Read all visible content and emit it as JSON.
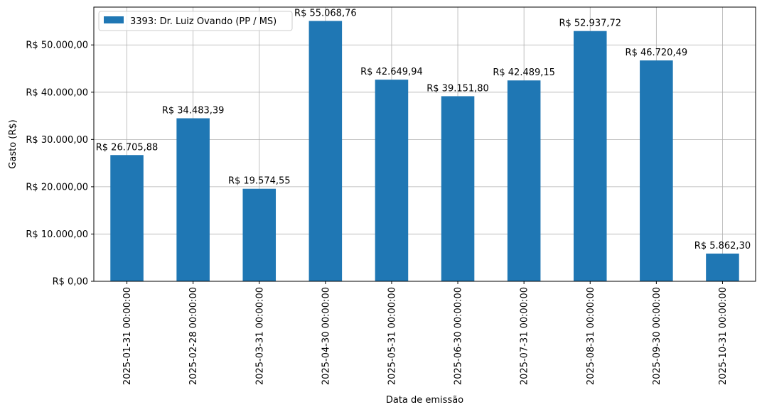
{
  "chart_data": {
    "type": "bar",
    "title": "",
    "xlabel": "Data de emissão",
    "ylabel": "Gasto (R$)",
    "ylim": [
      0,
      58000
    ],
    "yticks": [
      0,
      10000,
      20000,
      30000,
      40000,
      50000
    ],
    "ytick_labels": [
      "R$ 0,00",
      "R$ 10.000,00",
      "R$ 20.000,00",
      "R$ 30.000,00",
      "R$ 40.000,00",
      "R$ 50.000,00"
    ],
    "grid": true,
    "legend_position": "top-left",
    "categories": [
      "2025-01-31 00:00:00",
      "2025-02-28 00:00:00",
      "2025-03-31 00:00:00",
      "2025-04-30 00:00:00",
      "2025-05-31 00:00:00",
      "2025-06-30 00:00:00",
      "2025-07-31 00:00:00",
      "2025-08-31 00:00:00",
      "2025-09-30 00:00:00",
      "2025-10-31 00:00:00"
    ],
    "series": [
      {
        "name": "3393: Dr. Luiz Ovando (PP / MS)",
        "color": "#1f77b4",
        "values": [
          26705.88,
          34483.39,
          19574.55,
          55068.76,
          42649.94,
          39151.8,
          42489.15,
          52937.72,
          46720.49,
          5862.3
        ],
        "value_labels": [
          "R$ 26.705,88",
          "R$ 34.483,39",
          "R$ 19.574,55",
          "R$ 55.068,76",
          "R$ 42.649,94",
          "R$ 39.151,80",
          "R$ 42.489,15",
          "R$ 52.937,72",
          "R$ 46.720,49",
          "R$ 5.862,30"
        ]
      }
    ]
  }
}
